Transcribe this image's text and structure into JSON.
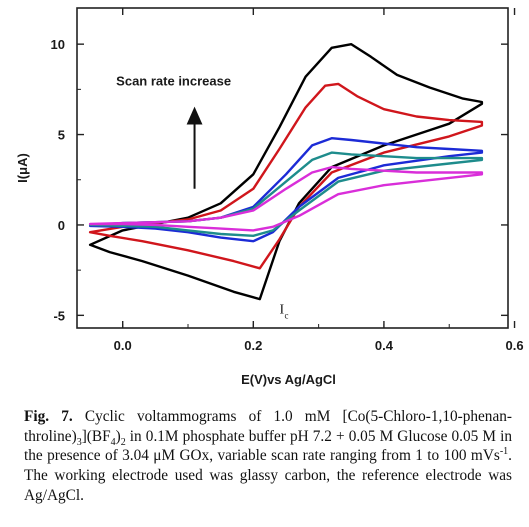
{
  "chart_data": {
    "type": "line",
    "title": "",
    "xlabel": "E(V)vs Ag/AgCl",
    "ylabel": "I(μA)",
    "xlim": [
      -0.07,
      0.59
    ],
    "ylim": [
      -5.7,
      12.0
    ],
    "xticks": [
      0.0,
      0.2,
      0.4,
      0.6
    ],
    "xtick_labels": [
      "0.0",
      "0.2",
      "0.4",
      "0.6"
    ],
    "yticks": [
      -5,
      0,
      5,
      10
    ],
    "ytick_labels": [
      "-5",
      "0",
      "5",
      "10"
    ],
    "grid": false,
    "legend": "none",
    "annotations": {
      "arrow_text": "Scan rate increase",
      "arrow_from": [
        0.11,
        2.0
      ],
      "arrow_to": [
        0.11,
        6.1
      ],
      "peak_label": "I",
      "peak_label_sub": "c",
      "peak_label_at": [
        0.24,
        -4.9
      ]
    },
    "series": [
      {
        "color": "#000000",
        "x": [
          -0.05,
          0.0,
          0.1,
          0.15,
          0.2,
          0.24,
          0.28,
          0.32,
          0.35,
          0.38,
          0.42,
          0.47,
          0.52,
          0.55,
          0.55,
          0.5,
          0.4,
          0.32,
          0.27,
          0.24,
          0.21,
          0.17,
          0.1,
          0.03,
          -0.02,
          -0.05
        ],
        "y": [
          -1.1,
          -0.3,
          0.4,
          1.2,
          2.8,
          5.4,
          8.2,
          9.8,
          10.0,
          9.3,
          8.3,
          7.6,
          7.0,
          6.8,
          6.7,
          5.6,
          4.4,
          3.2,
          1.2,
          -0.9,
          -4.1,
          -3.7,
          -2.8,
          -2.0,
          -1.5,
          -1.1
        ]
      },
      {
        "color": "#d0161c",
        "x": [
          -0.05,
          0.0,
          0.1,
          0.15,
          0.2,
          0.24,
          0.28,
          0.31,
          0.33,
          0.36,
          0.4,
          0.45,
          0.5,
          0.55,
          0.55,
          0.5,
          0.4,
          0.32,
          0.27,
          0.24,
          0.21,
          0.17,
          0.1,
          0.03,
          -0.02,
          -0.05
        ],
        "y": [
          -0.4,
          -0.1,
          0.3,
          0.8,
          2.0,
          4.2,
          6.5,
          7.7,
          7.8,
          7.1,
          6.4,
          6.0,
          5.8,
          5.7,
          5.5,
          4.9,
          4.0,
          2.9,
          1.0,
          -0.8,
          -2.4,
          -2.0,
          -1.4,
          -0.9,
          -0.6,
          -0.4
        ]
      },
      {
        "color": "#1c2bd6",
        "x": [
          -0.05,
          0.0,
          0.1,
          0.15,
          0.2,
          0.25,
          0.29,
          0.32,
          0.35,
          0.4,
          0.45,
          0.5,
          0.55,
          0.55,
          0.5,
          0.4,
          0.33,
          0.27,
          0.23,
          0.2,
          0.15,
          0.1,
          0.05,
          0.0,
          -0.05
        ],
        "y": [
          -0.05,
          0.1,
          0.2,
          0.4,
          1.0,
          2.8,
          4.4,
          4.8,
          4.7,
          4.5,
          4.3,
          4.2,
          4.1,
          4.0,
          3.8,
          3.3,
          2.6,
          1.0,
          -0.4,
          -0.9,
          -0.7,
          -0.4,
          -0.2,
          -0.1,
          -0.05
        ]
      },
      {
        "color": "#1e8c8c",
        "x": [
          -0.05,
          0.0,
          0.1,
          0.15,
          0.2,
          0.25,
          0.29,
          0.32,
          0.35,
          0.4,
          0.45,
          0.5,
          0.55,
          0.55,
          0.5,
          0.4,
          0.33,
          0.27,
          0.23,
          0.2,
          0.15,
          0.1,
          0.05,
          0.0,
          -0.05
        ],
        "y": [
          0.0,
          0.1,
          0.2,
          0.4,
          0.9,
          2.4,
          3.6,
          4.0,
          3.9,
          3.8,
          3.7,
          3.7,
          3.7,
          3.6,
          3.4,
          3.0,
          2.4,
          0.8,
          -0.3,
          -0.6,
          -0.5,
          -0.3,
          -0.1,
          -0.05,
          0.0
        ]
      },
      {
        "color": "#d92ed9",
        "x": [
          -0.05,
          0.0,
          0.1,
          0.15,
          0.2,
          0.25,
          0.29,
          0.32,
          0.35,
          0.4,
          0.45,
          0.5,
          0.55,
          0.55,
          0.5,
          0.4,
          0.33,
          0.27,
          0.23,
          0.2,
          0.15,
          0.1,
          0.05,
          0.0,
          -0.05
        ],
        "y": [
          0.05,
          0.1,
          0.2,
          0.4,
          0.8,
          2.0,
          2.9,
          3.2,
          3.1,
          3.0,
          2.9,
          2.9,
          2.9,
          2.8,
          2.6,
          2.2,
          1.7,
          0.5,
          -0.1,
          -0.3,
          -0.2,
          -0.1,
          0.0,
          0.05,
          0.05
        ]
      }
    ]
  },
  "caption": {
    "label": "Fig. 7.",
    "text_1": " Cyclic voltammograms of 1.0 mM [Co(5-Chloro-1,10-phenan-throline)",
    "sub_1": "3",
    "text_2": "](BF",
    "sub_2": "4",
    "text_3": ")",
    "sub_3": "2",
    "text_4": " in 0.1M phosphate buffer pH 7.2 + 0.05 M Glucose 0.05 M in the presence of 3.04 μM GOx, variable scan rate ranging from 1 to 100 mVs",
    "sup_1": "-1",
    "text_5": ". The working electrode used was glassy carbon, the reference electrode was Ag/AgCl."
  }
}
